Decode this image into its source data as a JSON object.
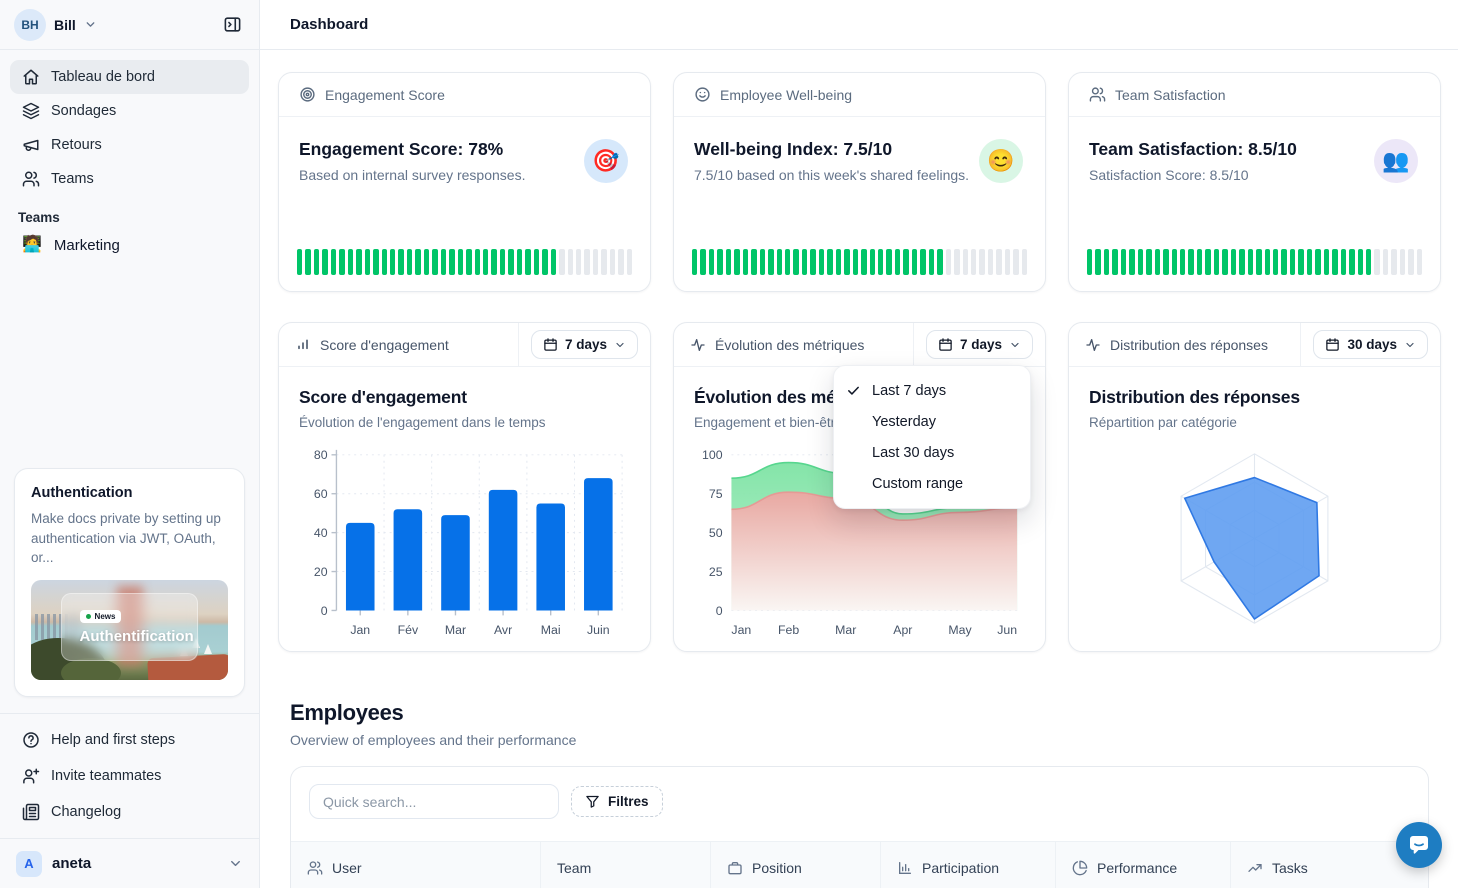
{
  "colors": {
    "accent": "#0671e8",
    "progress_green": "#00c568",
    "chat_button": "#1e7dc2",
    "radar_fill": "#5b9bf0",
    "radar_stroke": "#3079e3"
  },
  "sidebar": {
    "user": {
      "initials": "BH",
      "name": "Bill"
    },
    "nav": [
      {
        "label": "Tableau de bord",
        "icon": "home",
        "active": true
      },
      {
        "label": "Sondages",
        "icon": "layers"
      },
      {
        "label": "Retours",
        "icon": "megaphone"
      },
      {
        "label": "Teams",
        "icon": "users"
      }
    ],
    "teams_section": {
      "label": "Teams",
      "items": [
        {
          "label": "Marketing",
          "emoji": "🧑‍💻"
        }
      ]
    },
    "promo_card": {
      "title": "Authentication",
      "description": "Make docs private by setting up authentication via JWT, OAuth, or...",
      "badge_label": "News",
      "image_caption": "Authentification"
    },
    "footer_nav": [
      {
        "label": "Help and first steps",
        "icon": "help"
      },
      {
        "label": "Invite teammates",
        "icon": "user-plus"
      },
      {
        "label": "Changelog",
        "icon": "newspaper"
      }
    ],
    "workspace": {
      "initial": "A",
      "name": "aneta"
    }
  },
  "header": {
    "title": "Dashboard"
  },
  "progress_segments": 40,
  "stat_cards": [
    {
      "header": "Engagement Score",
      "title": "Engagement Score: 78%",
      "subtitle": "Based on internal survey responses.",
      "emoji": "🎯",
      "emoji_bg": "#d6e8fb",
      "progress_pct": 78
    },
    {
      "header": "Employee Well-being",
      "title": "Well-being Index: 7.5/10",
      "subtitle": "7.5/10 based on this week's shared feelings.",
      "emoji": "😊",
      "emoji_bg": "#d9f6e5",
      "progress_pct": 75
    },
    {
      "header": "Team Satisfaction",
      "title": "Team Satisfaction: 8.5/10",
      "subtitle": "Satisfaction Score: 8.5/10",
      "emoji": "👥",
      "emoji_bg": "#ece7f8",
      "progress_pct": 85
    }
  ],
  "chart_cards": [
    {
      "header": "Score d'engagement",
      "range_label": "7 days",
      "title": "Score d'engagement",
      "subtitle": "Évolution de l'engagement dans le temps"
    },
    {
      "header": "Évolution des métriques",
      "range_label": "7 days",
      "title": "Évolution des métriques",
      "subtitle": "Engagement et bien-être"
    },
    {
      "header": "Distribution des réponses",
      "range_label": "30 days",
      "title": "Distribution des réponses",
      "subtitle": "Répartition par catégorie"
    }
  ],
  "dropdown_menu": {
    "items": [
      {
        "label": "Last 7 days",
        "checked": true
      },
      {
        "label": "Yesterday",
        "checked": false
      },
      {
        "label": "Last 30 days",
        "checked": false
      },
      {
        "label": "Custom range",
        "checked": false
      }
    ]
  },
  "chart_data": [
    {
      "type": "bar",
      "title": "Score d'engagement",
      "categories": [
        "Jan",
        "Fév",
        "Mar",
        "Avr",
        "Mai",
        "Juin"
      ],
      "values": [
        45,
        52,
        49,
        62,
        55,
        68
      ],
      "ylim": [
        0,
        80
      ],
      "yticks": [
        0,
        20,
        40,
        60,
        80
      ],
      "color": "#0671e8",
      "grid": "dotted"
    },
    {
      "type": "area",
      "title": "Évolution des métriques",
      "x": [
        "Jan",
        "Feb",
        "Mar",
        "Apr",
        "May",
        "Jun"
      ],
      "series": [
        {
          "name": "engagement",
          "values": [
            85,
            95,
            88,
            62,
            66,
            72
          ],
          "fill_top": "#7ee3a4",
          "fill_bottom": "#b9f0cf",
          "line": "#57d68e"
        },
        {
          "name": "bien-être",
          "values": [
            65,
            76,
            72,
            58,
            63,
            66
          ],
          "fill_top": "#eda5a1",
          "fill_bottom": "#fdf6f5",
          "line": "#e59a95"
        }
      ],
      "ylim": [
        0,
        100
      ],
      "yticks": [
        0,
        25,
        50,
        75,
        100
      ],
      "grid": "dotted",
      "legend": "none"
    },
    {
      "type": "radar",
      "title": "Distribution des réponses",
      "axes_count": 6,
      "values_clockwise_from_top": [
        72,
        85,
        88,
        95,
        55,
        95
      ],
      "max": 100,
      "rings": 3,
      "fill": "#5b9bf0",
      "stroke": "#3079e3",
      "grid_color": "#e2e8f0"
    }
  ],
  "employees": {
    "title": "Employees",
    "subtitle": "Overview of employees and their performance",
    "search_placeholder": "Quick search...",
    "filter_label": "Filtres",
    "columns": [
      {
        "label": "User",
        "icon": "users"
      },
      {
        "label": "Team",
        "icon": "none"
      },
      {
        "label": "Position",
        "icon": "briefcase"
      },
      {
        "label": "Participation",
        "icon": "bar-chart"
      },
      {
        "label": "Performance",
        "icon": "pie-chart"
      },
      {
        "label": "Tasks",
        "icon": "trending-up"
      }
    ]
  }
}
